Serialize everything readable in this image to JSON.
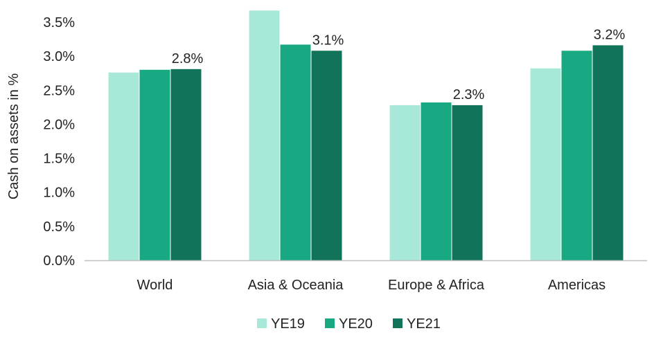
{
  "chart_data": {
    "type": "bar",
    "ylabel": "Cash on assets in %",
    "ylim": [
      0,
      3.7
    ],
    "yticks": [
      "0.0%",
      "0.5%",
      "1.0%",
      "1.5%",
      "2.0%",
      "2.5%",
      "3.0%",
      "3.5%"
    ],
    "ytick_values": [
      0,
      0.5,
      1.0,
      1.5,
      2.0,
      2.5,
      3.0,
      3.5
    ],
    "categories": [
      "World",
      "Asia & Oceania",
      "Europe & Africa",
      "Americas"
    ],
    "series": [
      {
        "name": "YE19",
        "color": "#a8e8d8",
        "values": [
          2.76,
          3.67,
          2.28,
          2.82
        ]
      },
      {
        "name": "YE20",
        "color": "#18a882",
        "values": [
          2.8,
          3.17,
          2.32,
          3.08
        ]
      },
      {
        "name": "YE21",
        "color": "#117359",
        "values": [
          2.81,
          3.08,
          2.28,
          3.16
        ]
      }
    ],
    "data_labels": [
      {
        "category_index": 0,
        "series_index": 2,
        "text": "2.8%"
      },
      {
        "category_index": 1,
        "series_index": 2,
        "text": "3.1%"
      },
      {
        "category_index": 2,
        "series_index": 2,
        "text": "2.3%"
      },
      {
        "category_index": 3,
        "series_index": 2,
        "text": "3.2%"
      }
    ],
    "grid": false,
    "legend_position": "bottom-center"
  }
}
